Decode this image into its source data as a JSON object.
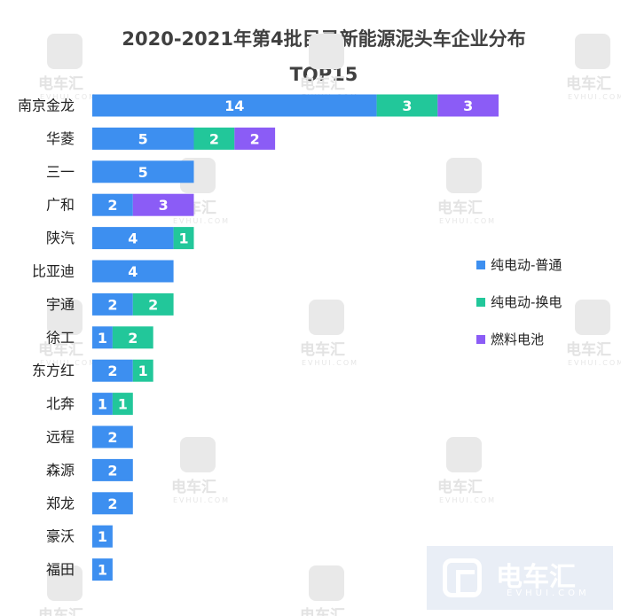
{
  "chart_data": {
    "type": "bar",
    "orientation": "horizontal",
    "stacked": true,
    "title": "2020-2021年第4批目录新能源泥头车企业分布",
    "subtitle": "TOP15",
    "categories": [
      "南京金龙",
      "华菱",
      "三一",
      "广和",
      "陕汽",
      "比亚迪",
      "宇通",
      "徐工",
      "东方红",
      "北奔",
      "远程",
      "森源",
      "郑龙",
      "豪沃",
      "福田"
    ],
    "series": [
      {
        "name": "纯电动-普通",
        "color": "#3d8ff0",
        "values": [
          14,
          5,
          5,
          2,
          4,
          4,
          2,
          1,
          2,
          1,
          2,
          2,
          2,
          1,
          1
        ]
      },
      {
        "name": "纯电动-换电",
        "color": "#22c79a",
        "values": [
          3,
          2,
          0,
          0,
          1,
          0,
          2,
          2,
          1,
          1,
          0,
          0,
          0,
          0,
          0
        ]
      },
      {
        "name": "燃料电池",
        "color": "#8b5cf6",
        "values": [
          3,
          2,
          0,
          3,
          0,
          0,
          0,
          0,
          0,
          0,
          0,
          0,
          0,
          0,
          0
        ]
      }
    ],
    "legend_position": "right",
    "grid": false,
    "xlim": [
      0,
      20
    ]
  },
  "watermark": {
    "brand": "电车汇",
    "url": "EVHUI.COM"
  }
}
